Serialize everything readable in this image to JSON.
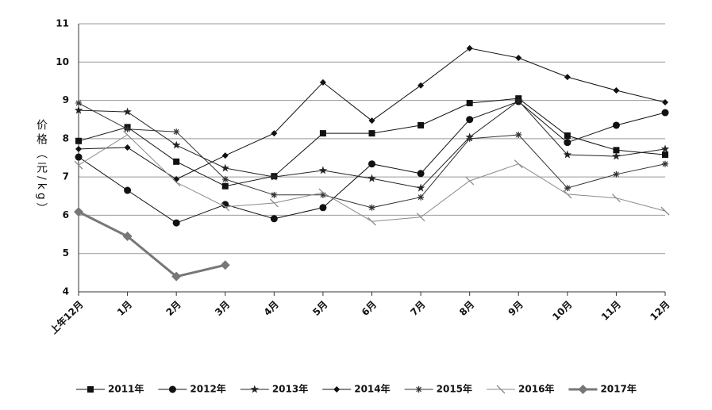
{
  "chart_data": {
    "type": "line",
    "y_label": "价格（元/kg）",
    "categories": [
      "上年12月",
      "1月",
      "2月",
      "3月",
      "4月",
      "5月",
      "6月",
      "7月",
      "8月",
      "9月",
      "10月",
      "11月",
      "12月"
    ],
    "ylim": [
      4,
      11
    ],
    "yticks": [
      4,
      5,
      6,
      7,
      8,
      9,
      10,
      11
    ],
    "grid": true,
    "legend": "bottom",
    "series": [
      {
        "name": "2011年",
        "color": "#111111",
        "marker": "square",
        "values": [
          7.94,
          8.3,
          7.4,
          6.76,
          7.02,
          8.14,
          8.14,
          8.35,
          8.93,
          9.05,
          8.08,
          7.7,
          7.58
        ]
      },
      {
        "name": "2012年",
        "color": "#111111",
        "marker": "circle",
        "values": [
          7.52,
          6.65,
          5.8,
          6.28,
          5.91,
          6.2,
          7.34,
          7.09,
          8.5,
          8.97,
          7.9,
          8.35,
          8.68
        ]
      },
      {
        "name": "2013年",
        "color": "#222222",
        "marker": "star",
        "values": [
          8.74,
          8.7,
          7.83,
          7.23,
          7.0,
          7.17,
          6.96,
          6.71,
          8.04,
          8.99,
          7.58,
          7.54,
          7.73
        ]
      },
      {
        "name": "2014年",
        "color": "#111111",
        "marker": "diamond",
        "values": [
          7.73,
          7.77,
          6.94,
          7.56,
          8.14,
          9.47,
          8.47,
          9.39,
          10.36,
          10.11,
          9.61,
          9.26,
          8.95
        ]
      },
      {
        "name": "2015年",
        "color": "#333333",
        "marker": "asterisk",
        "values": [
          8.93,
          8.25,
          8.18,
          6.94,
          6.53,
          6.53,
          6.2,
          6.47,
          8.0,
          8.1,
          6.71,
          7.07,
          7.34
        ]
      },
      {
        "name": "2016年",
        "color": "#8a8a8a",
        "marker": "slash",
        "values": [
          7.31,
          8.1,
          6.86,
          6.22,
          6.32,
          6.59,
          5.84,
          5.95,
          6.9,
          7.34,
          6.55,
          6.45,
          6.11
        ]
      },
      {
        "name": "2017年",
        "color": "#777777",
        "marker": "bigdiamond",
        "values": [
          6.09,
          5.45,
          4.4,
          4.7,
          null,
          null,
          null,
          null,
          null,
          null,
          null,
          null,
          null
        ]
      }
    ]
  }
}
